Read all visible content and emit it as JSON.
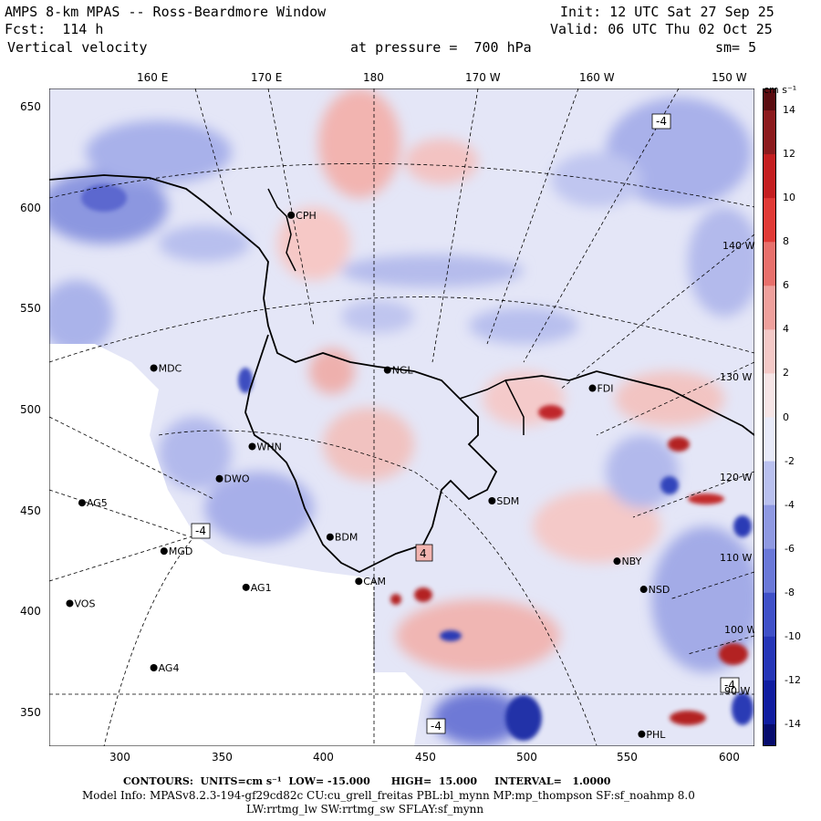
{
  "header": {
    "title": "AMPS 8-km MPAS -- Ross-Beardmore Window",
    "forecast": "Fcst:  114 h",
    "variable": "Vertical velocity",
    "init": "Init: 12 UTC Sat 27 Sep 25",
    "valid": "Valid: 06 UTC Thu 02 Oct 25",
    "pressure": "at pressure =  700 hPa",
    "smoothing": "sm= 5"
  },
  "axes": {
    "top_ticks": [
      "160 E",
      "170 E",
      "180",
      "170 W",
      "160 W",
      "150 W"
    ],
    "left_ticks": [
      "650",
      "600",
      "550",
      "500",
      "450",
      "400",
      "350"
    ],
    "bottom_ticks": [
      "300",
      "350",
      "400",
      "450",
      "500",
      "550",
      "600"
    ],
    "x_range": [
      266,
      610
    ],
    "y_range": [
      333,
      660
    ]
  },
  "inmap_labels": [
    "140 W",
    "130 W",
    "120 W",
    "110 W",
    "100 W",
    "90 W"
  ],
  "stations": [
    {
      "name": "CPH",
      "x": 384,
      "y": 597
    },
    {
      "name": "MDC",
      "x": 317,
      "y": 521
    },
    {
      "name": "NGL",
      "x": 431,
      "y": 520
    },
    {
      "name": "FDI",
      "x": 531,
      "y": 511
    },
    {
      "name": "WHN",
      "x": 365,
      "y": 482
    },
    {
      "name": "DWO",
      "x": 349,
      "y": 466
    },
    {
      "name": "SDM",
      "x": 482,
      "y": 455
    },
    {
      "name": "AG5",
      "x": 282,
      "y": 454
    },
    {
      "name": "BDM",
      "x": 403,
      "y": 437
    },
    {
      "name": "MGD",
      "x": 322,
      "y": 430
    },
    {
      "name": "NBY",
      "x": 543,
      "y": 425
    },
    {
      "name": "CAM",
      "x": 417,
      "y": 415
    },
    {
      "name": "AG1",
      "x": 362,
      "y": 412
    },
    {
      "name": "NSD",
      "x": 556,
      "y": 411
    },
    {
      "name": "VOS",
      "x": 276,
      "y": 404
    },
    {
      "name": "AG4",
      "x": 317,
      "y": 372
    },
    {
      "name": "PHL",
      "x": 555,
      "y": 339
    }
  ],
  "contour_labels": [
    "-4",
    "4",
    "-4",
    "-4",
    "-4"
  ],
  "colorbar": {
    "units": "cm s⁻¹",
    "labels": [
      "14",
      "12",
      "10",
      "8",
      "6",
      "4",
      "2",
      "0",
      "-2",
      "-4",
      "-6",
      "-8",
      "-10",
      "-12",
      "-14"
    ],
    "values": [
      14,
      12,
      10,
      8,
      6,
      4,
      2,
      0,
      -2,
      -4,
      -6,
      -8,
      -10,
      -12,
      -14
    ]
  },
  "footer": {
    "contours": "CONTOURS:  UNITS=cm s⁻¹  LOW= -15.000      HIGH=  15.000     INTERVAL=   1.0000",
    "model_info": "Model Info: MPASv8.2.3-194-gf29cd82c CU:cu_grell_freitas PBL:bl_mynn MP:mp_thompson SF:sf_noahmp 8.0",
    "physics": "LW:rrtmg_lw SW:rrtmg_sw SFLAY:sf_mynn"
  }
}
